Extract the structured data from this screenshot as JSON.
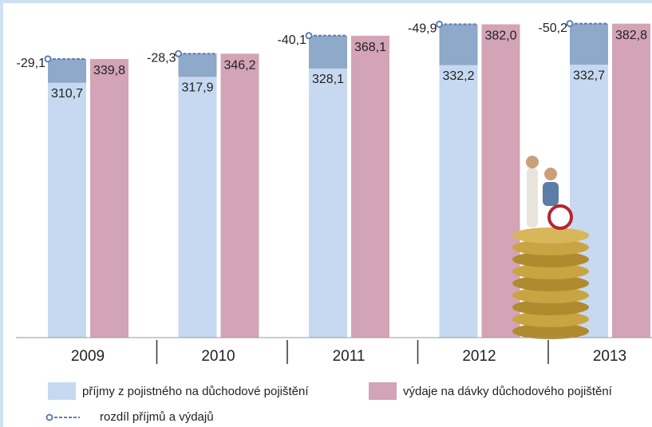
{
  "chart_data": {
    "type": "bar",
    "categories": [
      "2009",
      "2010",
      "2011",
      "2012",
      "2013"
    ],
    "ylim": [
      0,
      400
    ],
    "series": [
      {
        "name": "příjmy z pojistného na důchodové pojištění",
        "color": "#c6d9f0",
        "values": [
          310.7,
          317.9,
          328.1,
          332.2,
          332.7
        ],
        "value_labels": [
          "310,7",
          "317,9",
          "328,1",
          "332,2",
          "332,7"
        ]
      },
      {
        "name": "výdaje na dávky důchodového pojištění",
        "color": "#d3a3b6",
        "values": [
          339.8,
          346.2,
          368.1,
          382.0,
          382.8
        ],
        "value_labels": [
          "339,8",
          "346,2",
          "368,1",
          "382,0",
          "382,8"
        ]
      },
      {
        "name": "rozdíl příjmů a výdajů",
        "color": "#8ea9c9",
        "line_color": "#5b7fb0",
        "values": [
          -29.1,
          -28.3,
          -40.1,
          -49.9,
          -50.2
        ],
        "value_labels": [
          "-29,1",
          "-28,3",
          "-40,1",
          "-49,9",
          "-50,2"
        ]
      }
    ]
  }
}
